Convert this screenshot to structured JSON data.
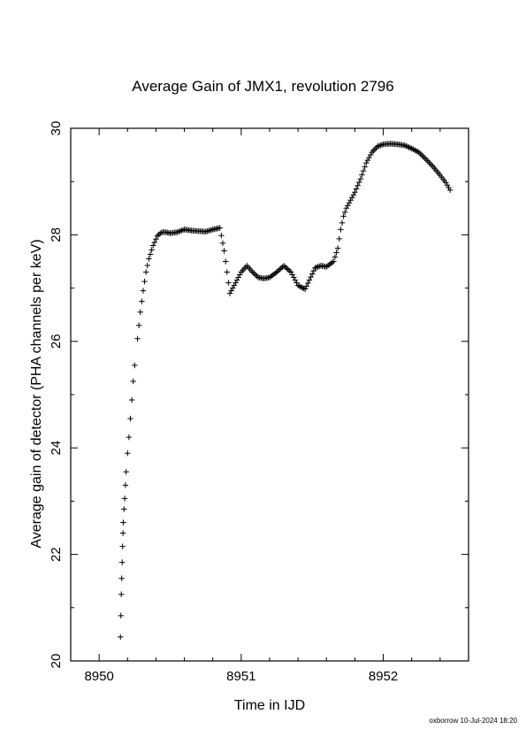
{
  "chart_data": {
    "type": "scatter",
    "title": "Average Gain of JMX1, revolution 2796",
    "xlabel": "Time in IJD",
    "ylabel": "Average gain of detector (PHA channels per keV)",
    "xlim": [
      8949.8,
      8952.6
    ],
    "ylim": [
      20,
      30
    ],
    "xticks": [
      8950,
      8951,
      8952
    ],
    "xtick_labels": [
      "8950",
      "8951",
      "8952"
    ],
    "yticks": [
      20,
      22,
      24,
      26,
      28,
      30
    ],
    "ytick_labels": [
      "20",
      "22",
      "24",
      "26",
      "28",
      "30"
    ],
    "marker": "plus",
    "grid": false,
    "series": [
      {
        "color": "#000000",
        "x": [
          8950.15,
          8950.153,
          8950.156,
          8950.159,
          8950.162,
          8950.165,
          8950.168,
          8950.17,
          8950.175,
          8950.18,
          8950.185,
          8950.19,
          8950.2,
          8950.21,
          8950.22,
          8950.23,
          8950.24,
          8950.25,
          8950.27,
          8950.29,
          8950.31,
          8950.33,
          8950.35,
          8950.38,
          8950.41,
          8950.44,
          8950.47,
          8950.5,
          8950.55,
          8950.6,
          8950.65,
          8950.7,
          8950.75,
          8950.8,
          8950.85,
          8950.88,
          8950.9,
          8950.92,
          8950.96,
          8951.0,
          8951.04,
          8951.08,
          8951.12,
          8951.16,
          8951.2,
          8951.25,
          8951.3,
          8951.35,
          8951.4,
          8951.45,
          8951.48,
          8951.52,
          8951.56,
          8951.6,
          8951.65,
          8951.68,
          8951.7,
          8951.72,
          8951.74,
          8951.77,
          8951.8,
          8951.84,
          8951.88,
          8951.92,
          8951.96,
          8952.0,
          8952.05,
          8952.1,
          8952.15,
          8952.2,
          8952.25,
          8952.3,
          8952.35,
          8952.4,
          8952.44,
          8952.47
        ],
        "y": [
          20.45,
          20.85,
          21.25,
          21.55,
          21.85,
          22.15,
          22.4,
          22.6,
          22.85,
          23.05,
          23.3,
          23.55,
          23.9,
          24.2,
          24.55,
          24.9,
          25.25,
          25.55,
          26.05,
          26.55,
          26.95,
          27.3,
          27.55,
          27.8,
          27.98,
          28.05,
          28.05,
          28.03,
          28.05,
          28.1,
          28.08,
          28.07,
          28.06,
          28.1,
          28.13,
          27.7,
          27.3,
          26.9,
          27.1,
          27.3,
          27.42,
          27.3,
          27.2,
          27.18,
          27.2,
          27.3,
          27.42,
          27.3,
          27.05,
          26.98,
          27.15,
          27.38,
          27.42,
          27.4,
          27.5,
          27.75,
          28.1,
          28.35,
          28.5,
          28.65,
          28.8,
          29.05,
          29.35,
          29.55,
          29.66,
          29.7,
          29.71,
          29.7,
          29.68,
          29.62,
          29.55,
          29.42,
          29.28,
          29.12,
          28.98,
          28.84
        ]
      }
    ]
  },
  "footer_text": "oxborrow 10-Jul-2024 18:20"
}
